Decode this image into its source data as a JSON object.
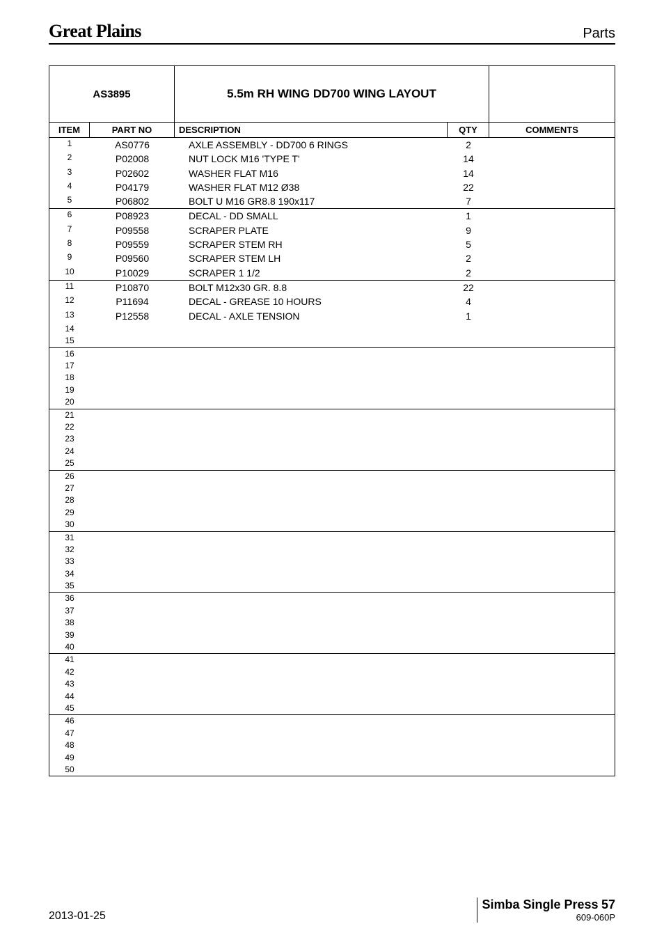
{
  "header": {
    "brand": "Great Plains",
    "section": "Parts"
  },
  "table": {
    "meta": {
      "assembly_no": "AS3895",
      "title": "5.5m RH WING DD700 WING LAYOUT"
    },
    "columns": {
      "item": "ITEM",
      "part": "PART NO",
      "desc": "DESCRIPTION",
      "qty": "QTY",
      "comments": "COMMENTS"
    },
    "groups": [
      [
        {
          "item": "1",
          "part": "AS0776",
          "desc": "AXLE ASSEMBLY - DD700 6 RINGS",
          "qty": "2"
        },
        {
          "item": "2",
          "part": "P02008",
          "desc": "NUT LOCK M16 'TYPE T'",
          "qty": "14"
        },
        {
          "item": "3",
          "part": "P02602",
          "desc": "WASHER FLAT M16",
          "qty": "14"
        },
        {
          "item": "4",
          "part": "P04179",
          "desc": "WASHER FLAT M12 Ø38",
          "qty": "22"
        },
        {
          "item": "5",
          "part": "P06802",
          "desc": "BOLT U M16 GR8.8 190x117",
          "qty": "7"
        }
      ],
      [
        {
          "item": "6",
          "part": "P08923",
          "desc": "DECAL - DD SMALL",
          "qty": "1"
        },
        {
          "item": "7",
          "part": "P09558",
          "desc": "SCRAPER PLATE",
          "qty": "9"
        },
        {
          "item": "8",
          "part": "P09559",
          "desc": "SCRAPER STEM RH",
          "qty": "5"
        },
        {
          "item": "9",
          "part": "P09560",
          "desc": "SCRAPER STEM LH",
          "qty": "2"
        },
        {
          "item": "10",
          "part": "P10029",
          "desc": "SCRAPER 1 1/2",
          "qty": "2"
        }
      ],
      [
        {
          "item": "11",
          "part": "P10870",
          "desc": "BOLT M12x30 GR. 8.8",
          "qty": "22"
        },
        {
          "item": "12",
          "part": "P11694",
          "desc": "DECAL - GREASE 10 HOURS",
          "qty": "4"
        },
        {
          "item": "13",
          "part": "P12558",
          "desc": "DECAL - AXLE TENSION",
          "qty": "1"
        },
        {
          "item": "14",
          "part": "",
          "desc": "",
          "qty": ""
        },
        {
          "item": "15",
          "part": "",
          "desc": "",
          "qty": ""
        }
      ],
      [
        {
          "item": "16",
          "part": "",
          "desc": "",
          "qty": ""
        },
        {
          "item": "17",
          "part": "",
          "desc": "",
          "qty": ""
        },
        {
          "item": "18",
          "part": "",
          "desc": "",
          "qty": ""
        },
        {
          "item": "19",
          "part": "",
          "desc": "",
          "qty": ""
        },
        {
          "item": "20",
          "part": "",
          "desc": "",
          "qty": ""
        }
      ],
      [
        {
          "item": "21",
          "part": "",
          "desc": "",
          "qty": ""
        },
        {
          "item": "22",
          "part": "",
          "desc": "",
          "qty": ""
        },
        {
          "item": "23",
          "part": "",
          "desc": "",
          "qty": ""
        },
        {
          "item": "24",
          "part": "",
          "desc": "",
          "qty": ""
        },
        {
          "item": "25",
          "part": "",
          "desc": "",
          "qty": ""
        }
      ],
      [
        {
          "item": "26",
          "part": "",
          "desc": "",
          "qty": ""
        },
        {
          "item": "27",
          "part": "",
          "desc": "",
          "qty": ""
        },
        {
          "item": "28",
          "part": "",
          "desc": "",
          "qty": ""
        },
        {
          "item": "29",
          "part": "",
          "desc": "",
          "qty": ""
        },
        {
          "item": "30",
          "part": "",
          "desc": "",
          "qty": ""
        }
      ],
      [
        {
          "item": "31",
          "part": "",
          "desc": "",
          "qty": ""
        },
        {
          "item": "32",
          "part": "",
          "desc": "",
          "qty": ""
        },
        {
          "item": "33",
          "part": "",
          "desc": "",
          "qty": ""
        },
        {
          "item": "34",
          "part": "",
          "desc": "",
          "qty": ""
        },
        {
          "item": "35",
          "part": "",
          "desc": "",
          "qty": ""
        }
      ],
      [
        {
          "item": "36",
          "part": "",
          "desc": "",
          "qty": ""
        },
        {
          "item": "37",
          "part": "",
          "desc": "",
          "qty": ""
        },
        {
          "item": "38",
          "part": "",
          "desc": "",
          "qty": ""
        },
        {
          "item": "39",
          "part": "",
          "desc": "",
          "qty": ""
        },
        {
          "item": "40",
          "part": "",
          "desc": "",
          "qty": ""
        }
      ],
      [
        {
          "item": "41",
          "part": "",
          "desc": "",
          "qty": ""
        },
        {
          "item": "42",
          "part": "",
          "desc": "",
          "qty": ""
        },
        {
          "item": "43",
          "part": "",
          "desc": "",
          "qty": ""
        },
        {
          "item": "44",
          "part": "",
          "desc": "",
          "qty": ""
        },
        {
          "item": "45",
          "part": "",
          "desc": "",
          "qty": ""
        }
      ],
      [
        {
          "item": "46",
          "part": "",
          "desc": "",
          "qty": ""
        },
        {
          "item": "47",
          "part": "",
          "desc": "",
          "qty": ""
        },
        {
          "item": "48",
          "part": "",
          "desc": "",
          "qty": ""
        },
        {
          "item": "49",
          "part": "",
          "desc": "",
          "qty": ""
        },
        {
          "item": "50",
          "part": "",
          "desc": "",
          "qty": ""
        }
      ]
    ]
  },
  "footer": {
    "date": "2013-01-25",
    "title": "Simba Single Press",
    "page": "57",
    "code": "609-060P"
  }
}
